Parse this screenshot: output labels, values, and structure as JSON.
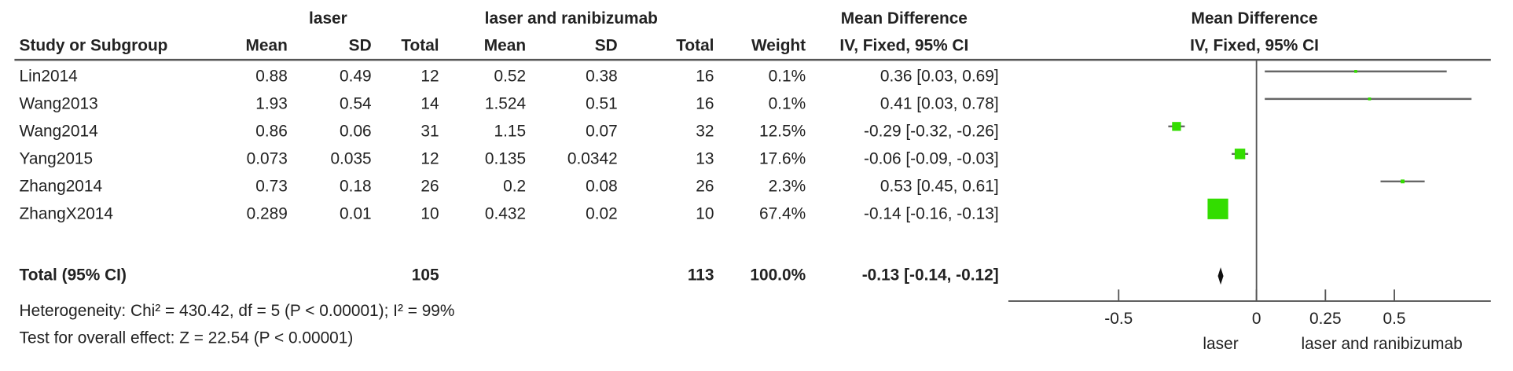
{
  "chart_data": {
    "type": "forest",
    "group_headers": [
      "laser",
      "laser and ranibizumab"
    ],
    "effect_header": "Mean Difference",
    "effect_subheader": "IV, Fixed, 95% CI",
    "plot_header": "Mean Difference",
    "plot_subheader": "IV, Fixed, 95% CI",
    "columns": [
      "Study or Subgroup",
      "Mean",
      "SD",
      "Total",
      "Mean",
      "SD",
      "Total",
      "Weight"
    ],
    "studies": [
      {
        "study": "Lin2014",
        "mean1": 0.88,
        "sd1": 0.49,
        "n1": 12,
        "mean2": 0.52,
        "sd2": 0.38,
        "n2": 16,
        "weight": 0.1,
        "weight_label": "0.1%",
        "md": 0.36,
        "ci": [
          0.03,
          0.69
        ],
        "ci_label": "0.36 [0.03, 0.69]"
      },
      {
        "study": "Wang2013",
        "mean1": 1.93,
        "sd1": 0.54,
        "n1": 14,
        "mean2": 1.524,
        "sd2": 0.51,
        "n2": 16,
        "weight": 0.1,
        "weight_label": "0.1%",
        "md": 0.41,
        "ci": [
          0.03,
          0.78
        ],
        "ci_label": "0.41 [0.03, 0.78]"
      },
      {
        "study": "Wang2014",
        "mean1": 0.86,
        "sd1": 0.06,
        "n1": 31,
        "mean2": 1.15,
        "sd2": 0.07,
        "n2": 32,
        "weight": 12.5,
        "weight_label": "12.5%",
        "md": -0.29,
        "ci": [
          -0.32,
          -0.26
        ],
        "ci_label": "-0.29 [-0.32, -0.26]"
      },
      {
        "study": "Yang2015",
        "mean1": 0.073,
        "sd1": 0.035,
        "n1": 12,
        "mean2": 0.135,
        "sd2": 0.0342,
        "n2": 13,
        "weight": 17.6,
        "weight_label": "17.6%",
        "md": -0.06,
        "ci": [
          -0.09,
          -0.03
        ],
        "ci_label": "-0.06 [-0.09, -0.03]"
      },
      {
        "study": "Zhang2014",
        "mean1": 0.73,
        "sd1": 0.18,
        "n1": 26,
        "mean2": 0.2,
        "sd2": 0.08,
        "n2": 26,
        "weight": 2.3,
        "weight_label": "2.3%",
        "md": 0.53,
        "ci": [
          0.45,
          0.61
        ],
        "ci_label": "0.53 [0.45, 0.61]"
      },
      {
        "study": "ZhangX2014",
        "mean1": 0.289,
        "sd1": 0.01,
        "n1": 10,
        "mean2": 0.432,
        "sd2": 0.02,
        "n2": 10,
        "weight": 67.4,
        "weight_label": "67.4%",
        "md": -0.14,
        "ci": [
          -0.16,
          -0.13
        ],
        "ci_label": "-0.14 [-0.16, -0.13]"
      }
    ],
    "total": {
      "label": "Total (95% CI)",
      "n1": 105,
      "n2": 113,
      "weight": 100.0,
      "weight_label": "100.0%",
      "md": -0.13,
      "ci": [
        -0.14,
        -0.12
      ],
      "ci_label": "-0.13 [-0.14, -0.12]"
    },
    "heterogeneity": "Heterogeneity: Chi² = 430.42, df = 5 (P < 0.00001); I² = 99%",
    "overall_effect": "Test for overall effect: Z = 22.54 (P < 0.00001)",
    "xlim": [
      -0.9,
      0.85
    ],
    "xticks": [
      -0.5,
      0,
      0.25,
      0.5
    ],
    "favours": [
      "laser",
      "laser and ranibizumab"
    ],
    "square_color": "#33dd00",
    "ci_color": "#666666",
    "diamond_color": "#111111"
  }
}
